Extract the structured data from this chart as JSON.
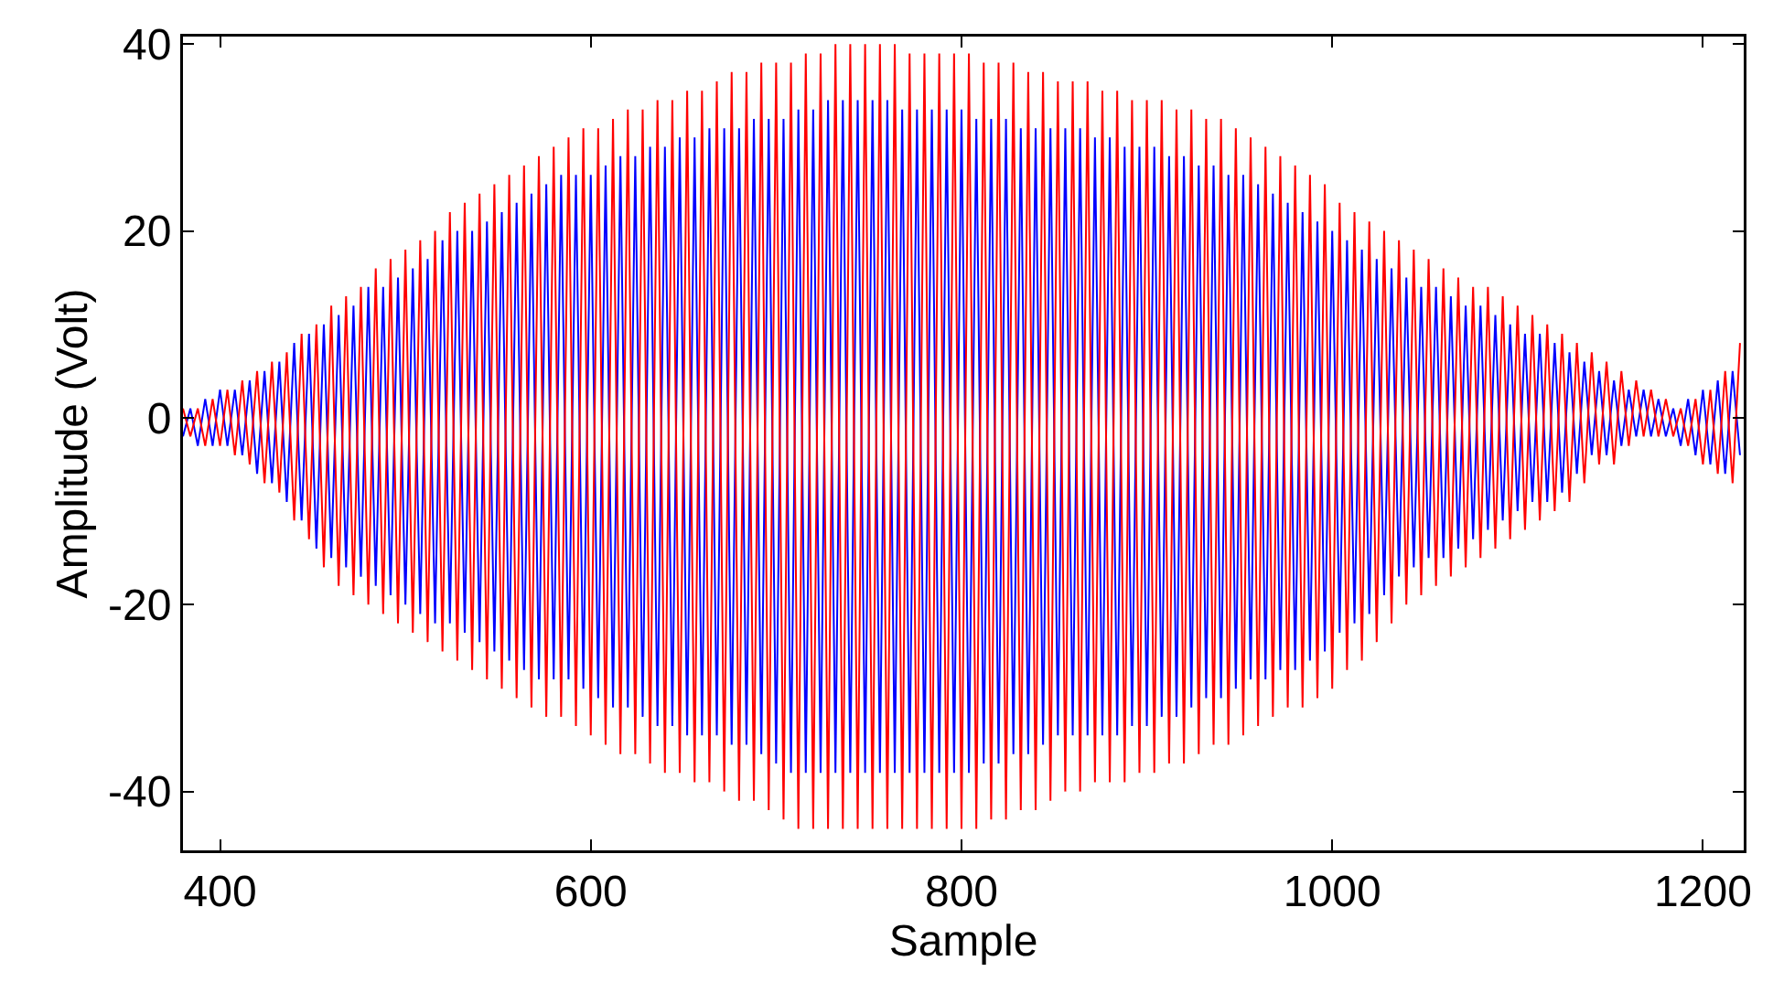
{
  "chart_data": {
    "type": "line",
    "xlabel": "Sample",
    "ylabel": "Amplitude (Volt)",
    "xlim": [
      380,
      1222
    ],
    "ylim": [
      -46.3,
      40.8
    ],
    "xticks": [
      400,
      600,
      800,
      1000,
      1200
    ],
    "yticks": [
      -40,
      -20,
      0,
      20,
      40
    ],
    "marker": "none",
    "line_style": "solid",
    "x": [
      380,
      384,
      388,
      392,
      396,
      400,
      404,
      408,
      412,
      416,
      420,
      424,
      428,
      432,
      436,
      440,
      444,
      448,
      452,
      456,
      460,
      464,
      468,
      472,
      476,
      480,
      484,
      488,
      492,
      496,
      500,
      504,
      508,
      512,
      516,
      520,
      524,
      528,
      532,
      536,
      540,
      544,
      548,
      552,
      556,
      560,
      564,
      568,
      572,
      576,
      580,
      584,
      588,
      592,
      596,
      600,
      604,
      608,
      612,
      616,
      620,
      624,
      628,
      632,
      636,
      640,
      644,
      648,
      652,
      656,
      660,
      664,
      668,
      672,
      676,
      680,
      684,
      688,
      692,
      696,
      700,
      704,
      708,
      712,
      716,
      720,
      724,
      728,
      732,
      736,
      740,
      744,
      748,
      752,
      756,
      760,
      764,
      768,
      772,
      776,
      780,
      784,
      788,
      792,
      796,
      800,
      804,
      808,
      812,
      816,
      820,
      824,
      828,
      832,
      836,
      840,
      844,
      848,
      852,
      856,
      860,
      864,
      868,
      872,
      876,
      880,
      884,
      888,
      892,
      896,
      900,
      904,
      908,
      912,
      916,
      920,
      924,
      928,
      932,
      936,
      940,
      944,
      948,
      952,
      956,
      960,
      964,
      968,
      972,
      976,
      980,
      984,
      988,
      992,
      996,
      1000,
      1004,
      1008,
      1012,
      1016,
      1020,
      1024,
      1028,
      1032,
      1036,
      1040,
      1044,
      1048,
      1052,
      1056,
      1060,
      1064,
      1068,
      1072,
      1076,
      1080,
      1084,
      1088,
      1092,
      1096,
      1100,
      1104,
      1108,
      1112,
      1116,
      1120,
      1124,
      1128,
      1132,
      1136,
      1140,
      1144,
      1148,
      1152,
      1156,
      1160,
      1164,
      1168,
      1172,
      1176,
      1180,
      1184,
      1188,
      1192,
      1196,
      1200,
      1204,
      1208,
      1212,
      1216,
      1220
    ],
    "series": [
      {
        "color": "#0000ff",
        "values": [
          -2,
          1,
          -3,
          2,
          -3,
          3,
          -3,
          3,
          -4,
          4,
          -6,
          5,
          -7,
          6,
          -9,
          8,
          -11,
          9,
          -14,
          10,
          -15,
          11,
          -16,
          12,
          -17,
          14,
          -18,
          14,
          -19,
          15,
          -20,
          16,
          -21,
          17,
          -22,
          19,
          -22,
          20,
          -23,
          20,
          -24,
          21,
          -25,
          22,
          -26,
          23,
          -27,
          24,
          -28,
          25,
          -28,
          26,
          -28,
          26,
          -29,
          26,
          -30,
          27,
          -31,
          28,
          -31,
          28,
          -32,
          29,
          -33,
          29,
          -33,
          30,
          -34,
          30,
          -34,
          31,
          -34,
          31,
          -35,
          31,
          -35,
          32,
          -36,
          32,
          -37,
          32,
          -38,
          33,
          -38,
          33,
          -38,
          34,
          -38,
          34,
          -38,
          34,
          -38,
          34,
          -38,
          34,
          -38,
          33,
          -38,
          33,
          -38,
          33,
          -38,
          33,
          -38,
          33,
          -38,
          32,
          -37,
          32,
          -37,
          32,
          -36,
          31,
          -36,
          31,
          -35,
          31,
          -34,
          31,
          -34,
          31,
          -34,
          30,
          -34,
          30,
          -34,
          29,
          -33,
          29,
          -33,
          29,
          -32,
          28,
          -32,
          28,
          -31,
          27,
          -30,
          27,
          -30,
          26,
          -29,
          26,
          -28,
          25,
          -28,
          24,
          -27,
          23,
          -27,
          22,
          -26,
          21,
          -25,
          20,
          -23,
          19,
          -22,
          18,
          -21,
          17,
          -19,
          16,
          -17,
          15,
          -16,
          14,
          -15,
          14,
          -15,
          13,
          -14,
          12,
          -13,
          12,
          -12,
          11,
          -11,
          10,
          -10,
          9,
          -9,
          9,
          -9,
          8,
          -8,
          7,
          -6,
          6,
          -4,
          5,
          -4,
          4,
          -3,
          3,
          -2,
          3,
          -2,
          2,
          -2,
          1,
          -3,
          2,
          -4,
          3,
          -5,
          4,
          -6,
          5,
          -4
        ]
      },
      {
        "color": "#ff0000",
        "values": [
          1,
          -2,
          1,
          -3,
          2,
          -3,
          3,
          -4,
          4,
          -5,
          5,
          -7,
          6,
          -8,
          7,
          -11,
          9,
          -13,
          10,
          -16,
          12,
          -18,
          13,
          -19,
          14,
          -20,
          16,
          -21,
          17,
          -22,
          18,
          -23,
          19,
          -24,
          20,
          -25,
          22,
          -26,
          23,
          -27,
          24,
          -28,
          25,
          -29,
          26,
          -30,
          27,
          -31,
          28,
          -32,
          29,
          -32,
          30,
          -33,
          31,
          -34,
          31,
          -35,
          32,
          -36,
          33,
          -36,
          33,
          -37,
          34,
          -38,
          34,
          -38,
          35,
          -39,
          35,
          -39,
          36,
          -40,
          37,
          -41,
          37,
          -41,
          38,
          -42,
          38,
          -43,
          38,
          -44,
          39,
          -44,
          39,
          -44,
          40,
          -44,
          40,
          -44,
          40,
          -44,
          40,
          -44,
          40,
          -44,
          39,
          -44,
          39,
          -44,
          39,
          -44,
          39,
          -44,
          39,
          -44,
          38,
          -43,
          38,
          -43,
          38,
          -42,
          37,
          -42,
          37,
          -41,
          36,
          -40,
          36,
          -40,
          36,
          -39,
          35,
          -39,
          35,
          -39,
          34,
          -38,
          34,
          -38,
          34,
          -37,
          33,
          -37,
          33,
          -36,
          32,
          -35,
          32,
          -35,
          31,
          -34,
          30,
          -33,
          29,
          -32,
          28,
          -31,
          27,
          -31,
          26,
          -30,
          25,
          -29,
          23,
          -27,
          22,
          -26,
          21,
          -24,
          20,
          -22,
          19,
          -20,
          18,
          -19,
          17,
          -18,
          16,
          -17,
          15,
          -16,
          14,
          -15,
          14,
          -14,
          13,
          -13,
          12,
          -12,
          11,
          -11,
          10,
          -10,
          9,
          -9,
          8,
          -7,
          7,
          -5,
          6,
          -5,
          5,
          -3,
          4,
          -2,
          3,
          -2,
          2,
          -2,
          1,
          -3,
          2,
          -5,
          3,
          -6,
          5,
          -7,
          8
        ]
      }
    ]
  }
}
